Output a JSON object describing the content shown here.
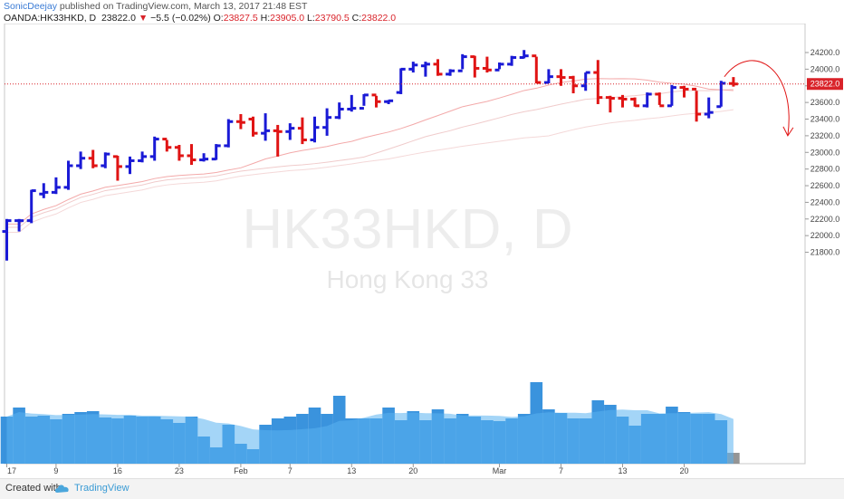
{
  "header": {
    "author": "SonicDeejay",
    "published_text": "published on TradingView.com, March 13, 2017 21:48 EST",
    "symbol": "OANDA:HK33HKD, D",
    "last": "23822.0",
    "change": "−5.5 (−0.02%)",
    "o_label": "O:",
    "o_value": "23827.5",
    "h_label": "H:",
    "h_value": "23905.0",
    "l_label": "L:",
    "l_value": "23790.5",
    "c_label": "C:",
    "c_value": "23822.0"
  },
  "watermark": {
    "symbol": "HK33HKD, D",
    "name": "Hong Kong 33"
  },
  "footer": {
    "created_with": "Created with",
    "brand": "TradingView"
  },
  "colors": {
    "up": "#1a1ad6",
    "down": "#e01414",
    "volume": "#2f8ddb",
    "volume_dim": "#8a8a8a",
    "price_line": "#d9232a"
  },
  "chart_data": {
    "type": "ohlc",
    "last_price": 23822.0,
    "last_price_label": "23822.0",
    "y_ticks": [
      21800,
      22000,
      22200,
      22400,
      22600,
      22800,
      23000,
      23200,
      23400,
      23600,
      23800,
      24000,
      24200
    ],
    "y_tick_labels": [
      "21800.0",
      "22000.0",
      "22200.0",
      "22400.0",
      "22600.0",
      "22800.0",
      "23000.0",
      "23200.0",
      "23400.0",
      "23600.0",
      "23800.0",
      "24000.0",
      "24200.0"
    ],
    "x_ticks": [
      {
        "index": 0,
        "label": "17"
      },
      {
        "index": 4,
        "label": "9"
      },
      {
        "index": 9,
        "label": "16"
      },
      {
        "index": 14,
        "label": "23"
      },
      {
        "index": 19,
        "label": "Feb"
      },
      {
        "index": 23,
        "label": "7"
      },
      {
        "index": 28,
        "label": "13"
      },
      {
        "index": 33,
        "label": "20"
      },
      {
        "index": 40,
        "label": "Mar"
      },
      {
        "index": 45,
        "label": "7"
      },
      {
        "index": 50,
        "label": "13"
      },
      {
        "index": 55,
        "label": "20"
      }
    ],
    "bars": [
      {
        "o": 22050,
        "h": 22200,
        "l": 21700,
        "c": 22180
      },
      {
        "o": 22180,
        "h": 22200,
        "l": 22050,
        "c": 22180
      },
      {
        "o": 22180,
        "h": 22550,
        "l": 22150,
        "c": 22540
      },
      {
        "o": 22500,
        "h": 22630,
        "l": 22450,
        "c": 22520
      },
      {
        "o": 22520,
        "h": 22700,
        "l": 22500,
        "c": 22580
      },
      {
        "o": 22580,
        "h": 22900,
        "l": 22550,
        "c": 22840
      },
      {
        "o": 22840,
        "h": 23010,
        "l": 22800,
        "c": 22930
      },
      {
        "o": 22930,
        "h": 23030,
        "l": 22810,
        "c": 22840
      },
      {
        "o": 22840,
        "h": 23000,
        "l": 22810,
        "c": 22980
      },
      {
        "o": 22950,
        "h": 22960,
        "l": 22660,
        "c": 22830
      },
      {
        "o": 22830,
        "h": 22950,
        "l": 22740,
        "c": 22900
      },
      {
        "o": 22900,
        "h": 23010,
        "l": 22880,
        "c": 22950
      },
      {
        "o": 22950,
        "h": 23190,
        "l": 22900,
        "c": 23160
      },
      {
        "o": 23160,
        "h": 23150,
        "l": 23010,
        "c": 23060
      },
      {
        "o": 23060,
        "h": 23090,
        "l": 22900,
        "c": 22960
      },
      {
        "o": 22960,
        "h": 23100,
        "l": 22850,
        "c": 22910
      },
      {
        "o": 22910,
        "h": 22990,
        "l": 22890,
        "c": 22920
      },
      {
        "o": 22920,
        "h": 23100,
        "l": 22910,
        "c": 23080
      },
      {
        "o": 23080,
        "h": 23400,
        "l": 23060,
        "c": 23370
      },
      {
        "o": 23370,
        "h": 23460,
        "l": 23280,
        "c": 23360
      },
      {
        "o": 23400,
        "h": 23430,
        "l": 23190,
        "c": 23230
      },
      {
        "o": 23230,
        "h": 23470,
        "l": 23140,
        "c": 23260
      },
      {
        "o": 23260,
        "h": 23330,
        "l": 22950,
        "c": 23250
      },
      {
        "o": 23250,
        "h": 23350,
        "l": 23150,
        "c": 23290
      },
      {
        "o": 23290,
        "h": 23420,
        "l": 23100,
        "c": 23150
      },
      {
        "o": 23150,
        "h": 23430,
        "l": 23120,
        "c": 23300
      },
      {
        "o": 23300,
        "h": 23530,
        "l": 23200,
        "c": 23420
      },
      {
        "o": 23420,
        "h": 23600,
        "l": 23400,
        "c": 23520
      },
      {
        "o": 23520,
        "h": 23690,
        "l": 23490,
        "c": 23530
      },
      {
        "o": 23530,
        "h": 23700,
        "l": 23560,
        "c": 23690
      },
      {
        "o": 23690,
        "h": 23680,
        "l": 23540,
        "c": 23610
      },
      {
        "o": 23610,
        "h": 23630,
        "l": 23580,
        "c": 23620
      },
      {
        "o": 23720,
        "h": 24010,
        "l": 23700,
        "c": 24000
      },
      {
        "o": 24000,
        "h": 24090,
        "l": 23960,
        "c": 24050
      },
      {
        "o": 24040,
        "h": 24090,
        "l": 23910,
        "c": 24060
      },
      {
        "o": 24060,
        "h": 24120,
        "l": 23920,
        "c": 23940
      },
      {
        "o": 23940,
        "h": 24000,
        "l": 23920,
        "c": 23980
      },
      {
        "o": 23980,
        "h": 24180,
        "l": 24000,
        "c": 24150
      },
      {
        "o": 24150,
        "h": 24160,
        "l": 23900,
        "c": 24010
      },
      {
        "o": 24010,
        "h": 24150,
        "l": 23960,
        "c": 23990
      },
      {
        "o": 23990,
        "h": 24080,
        "l": 24000,
        "c": 24060
      },
      {
        "o": 24060,
        "h": 24160,
        "l": 24040,
        "c": 24140
      },
      {
        "o": 24140,
        "h": 24230,
        "l": 24130,
        "c": 24160
      },
      {
        "o": 24160,
        "h": 24150,
        "l": 23830,
        "c": 23840
      },
      {
        "o": 23840,
        "h": 24000,
        "l": 23830,
        "c": 23910
      },
      {
        "o": 23910,
        "h": 24000,
        "l": 23800,
        "c": 23900
      },
      {
        "o": 23900,
        "h": 23920,
        "l": 23710,
        "c": 23800
      },
      {
        "o": 23800,
        "h": 23960,
        "l": 23740,
        "c": 23960
      },
      {
        "o": 23960,
        "h": 24110,
        "l": 23580,
        "c": 23660
      },
      {
        "o": 23660,
        "h": 23680,
        "l": 23480,
        "c": 23650
      },
      {
        "o": 23650,
        "h": 23690,
        "l": 23540,
        "c": 23640
      },
      {
        "o": 23640,
        "h": 23660,
        "l": 23550,
        "c": 23560
      },
      {
        "o": 23560,
        "h": 23720,
        "l": 23540,
        "c": 23700
      },
      {
        "o": 23700,
        "h": 23720,
        "l": 23570,
        "c": 23560
      },
      {
        "o": 23560,
        "h": 23810,
        "l": 23560,
        "c": 23780
      },
      {
        "o": 23780,
        "h": 23800,
        "l": 23660,
        "c": 23760
      },
      {
        "o": 23760,
        "h": 23740,
        "l": 23370,
        "c": 23460
      },
      {
        "o": 23460,
        "h": 23660,
        "l": 23410,
        "c": 23480
      },
      {
        "o": 23550,
        "h": 23860,
        "l": 23550,
        "c": 23830
      },
      {
        "o": 23827.5,
        "h": 23905,
        "l": 23790.5,
        "c": 23822
      }
    ],
    "volume_relative": [
      0.52,
      0.62,
      0.52,
      0.53,
      0.49,
      0.55,
      0.57,
      0.58,
      0.51,
      0.5,
      0.53,
      0.52,
      0.52,
      0.49,
      0.45,
      0.52,
      0.3,
      0.18,
      0.43,
      0.22,
      0.16,
      0.43,
      0.5,
      0.52,
      0.55,
      0.62,
      0.55,
      0.75,
      0.5,
      0.5,
      0.5,
      0.62,
      0.48,
      0.58,
      0.48,
      0.6,
      0.5,
      0.55,
      0.52,
      0.48,
      0.47,
      0.5,
      0.55,
      0.9,
      0.6,
      0.56,
      0.5,
      0.5,
      0.7,
      0.65,
      0.52,
      0.42,
      0.55,
      0.55,
      0.63,
      0.57,
      0.55,
      0.55,
      0.48,
      0.12
    ]
  }
}
